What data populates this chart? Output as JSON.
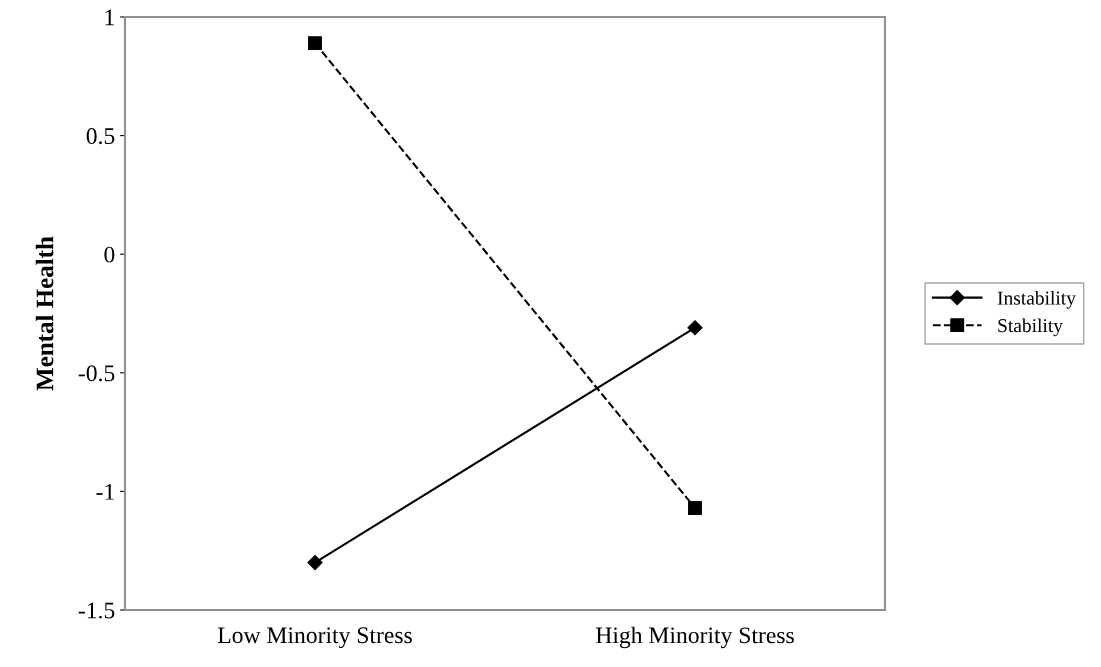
{
  "chart_data": {
    "type": "line",
    "ylabel": "Mental Health",
    "categories": [
      "Low Minority Stress",
      "High Minority Stress"
    ],
    "series": [
      {
        "name": "Instability",
        "color": "#000000",
        "values": [
          -1.3,
          -0.31
        ],
        "marker": "diamond",
        "line_style": "solid"
      },
      {
        "name": "Stability",
        "color": "#000000",
        "values": [
          0.89,
          -1.07
        ],
        "marker": "square",
        "line_style": "dashed"
      }
    ],
    "ylim": [
      -1.5,
      1
    ],
    "yticks": [
      -1.5,
      -1,
      -0.5,
      0,
      0.5,
      1
    ],
    "grid": false,
    "legend": "right"
  }
}
